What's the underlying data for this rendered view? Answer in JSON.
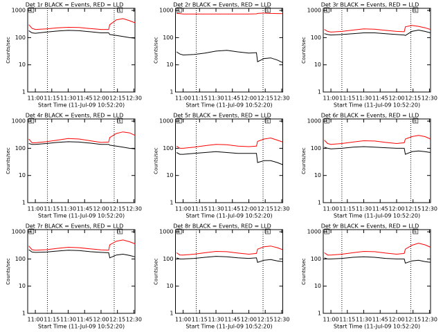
{
  "chart_data": [
    {
      "type": "line",
      "title": "Det 1r BLACK = Events, RED = LLD",
      "ylabel": "Counts/sec",
      "xlabel": "Start Time (11-Jul-09 10:52:20)",
      "x": [
        "10:54",
        "10:57",
        "11:00",
        "11:10",
        "11:20",
        "11:30",
        "11:40",
        "11:50",
        "12:00",
        "12:07",
        "12:08",
        "12:14",
        "12:20",
        "12:26",
        "12:31"
      ],
      "series": [
        {
          "name": "Events",
          "color": "#000000",
          "values": [
            180,
            150,
            145,
            160,
            175,
            185,
            180,
            165,
            150,
            150,
            130,
            120,
            110,
            100,
            95
          ]
        },
        {
          "name": "LLD",
          "color": "#ff0000",
          "values": [
            300,
            220,
            200,
            210,
            230,
            240,
            235,
            215,
            200,
            200,
            300,
            450,
            500,
            420,
            350
          ]
        }
      ],
      "xlim": [
        "10:53",
        "12:31"
      ],
      "xticks": [
        "11:00",
        "11:15",
        "11:30",
        "11:45",
        "12:00",
        "12:15",
        "12:30"
      ],
      "ylim": [
        1,
        1200
      ],
      "yticks": [
        1,
        10,
        100,
        1000
      ],
      "log_y": true,
      "vlines": [
        "11:11",
        "12:12"
      ],
      "annotations": [
        {
          "x": "10:56",
          "text": "E"
        },
        {
          "x": "12:17",
          "text": "E"
        }
      ]
    },
    {
      "type": "line",
      "title": "Det 2r BLACK = Events, RED = LLD",
      "ylabel": "Counts/sec",
      "xlabel": "Start Time (11-Jul-09 10:52:20)",
      "x": [
        "10:54",
        "10:57",
        "11:00",
        "11:10",
        "11:20",
        "11:30",
        "11:40",
        "11:50",
        "12:00",
        "12:07",
        "12:08",
        "12:14",
        "12:20",
        "12:26",
        "12:31"
      ],
      "series": [
        {
          "name": "Events",
          "color": "#000000",
          "values": [
            30,
            25,
            23,
            24,
            27,
            32,
            34,
            30,
            27,
            28,
            13,
            17,
            18,
            15,
            12
          ]
        },
        {
          "name": "LLD",
          "color": "#ff0000",
          "values": [
            780,
            760,
            740,
            740,
            740,
            740,
            740,
            740,
            740,
            750,
            780,
            800,
            780,
            770,
            760
          ]
        }
      ],
      "xlim": [
        "10:53",
        "12:31"
      ],
      "xticks": [
        "11:00",
        "11:15",
        "11:30",
        "11:45",
        "12:00",
        "12:15",
        "12:30"
      ],
      "ylim": [
        1,
        1200
      ],
      "yticks": [
        1,
        10,
        100,
        1000
      ],
      "log_y": true,
      "vlines": [
        "11:12",
        "12:13"
      ],
      "annotations": [
        {
          "x": "10:56",
          "text": "E"
        },
        {
          "x": "12:17",
          "text": "E"
        }
      ]
    },
    {
      "type": "line",
      "title": "Det 3r BLACK = Events, RED = LLD",
      "ylabel": "Counts/sec",
      "xlabel": "Start Time (11-Jul-09 10:52:20)",
      "x": [
        "10:54",
        "10:57",
        "11:00",
        "11:10",
        "11:20",
        "11:30",
        "11:40",
        "11:50",
        "12:00",
        "12:07",
        "12:08",
        "12:14",
        "12:20",
        "12:26",
        "12:31"
      ],
      "series": [
        {
          "name": "Events",
          "color": "#000000",
          "values": [
            140,
            130,
            125,
            130,
            140,
            150,
            150,
            140,
            130,
            125,
            120,
            170,
            190,
            170,
            150
          ]
        },
        {
          "name": "LLD",
          "color": "#ff0000",
          "values": [
            200,
            170,
            160,
            170,
            190,
            210,
            205,
            185,
            170,
            165,
            250,
            280,
            260,
            230,
            200
          ]
        }
      ],
      "xlim": [
        "10:53",
        "12:31"
      ],
      "xticks": [
        "11:00",
        "11:15",
        "11:30",
        "11:45",
        "12:00",
        "12:15",
        "12:30"
      ],
      "ylim": [
        1,
        1200
      ],
      "yticks": [
        1,
        10,
        100,
        1000
      ],
      "log_y": true,
      "vlines": [
        "11:10",
        "12:13"
      ],
      "annotations": [
        {
          "x": "10:56",
          "text": "E"
        },
        {
          "x": "12:17",
          "text": "E"
        }
      ]
    },
    {
      "type": "line",
      "title": "Det 4r BLACK = Events, RED = LLD",
      "ylabel": "Counts/sec",
      "xlabel": "Start Time (11-Jul-09 10:52:20)",
      "x": [
        "10:54",
        "10:57",
        "11:00",
        "11:10",
        "11:20",
        "11:30",
        "11:40",
        "11:50",
        "12:00",
        "12:07",
        "12:08",
        "12:14",
        "12:20",
        "12:26",
        "12:31"
      ],
      "series": [
        {
          "name": "Events",
          "color": "#000000",
          "values": [
            150,
            140,
            140,
            150,
            165,
            175,
            170,
            155,
            140,
            140,
            130,
            120,
            110,
            100,
            95
          ]
        },
        {
          "name": "LLD",
          "color": "#ff0000",
          "values": [
            220,
            160,
            160,
            175,
            200,
            230,
            220,
            190,
            165,
            170,
            250,
            350,
            400,
            370,
            300
          ]
        }
      ],
      "xlim": [
        "10:53",
        "12:31"
      ],
      "xticks": [
        "11:00",
        "11:15",
        "11:30",
        "11:45",
        "12:00",
        "12:15",
        "12:30"
      ],
      "ylim": [
        1,
        1200
      ],
      "yticks": [
        1,
        10,
        100,
        1000
      ],
      "log_y": true,
      "vlines": [
        "11:11",
        "12:12"
      ],
      "annotations": [
        {
          "x": "10:56",
          "text": "E"
        },
        {
          "x": "12:17",
          "text": "E"
        }
      ]
    },
    {
      "type": "line",
      "title": "Det 5r BLACK = Events, RED = LLD",
      "ylabel": "Counts/sec",
      "xlabel": "Start Time (11-Jul-09 10:52:20)",
      "x": [
        "10:54",
        "10:57",
        "11:00",
        "11:10",
        "11:20",
        "11:30",
        "11:40",
        "11:50",
        "12:00",
        "12:07",
        "12:08",
        "12:14",
        "12:20",
        "12:26",
        "12:31"
      ],
      "series": [
        {
          "name": "Events",
          "color": "#000000",
          "values": [
            70,
            60,
            60,
            65,
            70,
            75,
            70,
            65,
            65,
            65,
            30,
            35,
            35,
            30,
            25
          ]
        },
        {
          "name": "LLD",
          "color": "#ff0000",
          "values": [
            120,
            100,
            100,
            110,
            125,
            140,
            135,
            120,
            115,
            120,
            180,
            220,
            240,
            200,
            170
          ]
        }
      ],
      "xlim": [
        "10:53",
        "12:31"
      ],
      "xticks": [
        "11:00",
        "11:15",
        "11:30",
        "11:45",
        "12:00",
        "12:15",
        "12:30"
      ],
      "ylim": [
        1,
        1200
      ],
      "yticks": [
        1,
        10,
        100,
        1000
      ],
      "log_y": true,
      "vlines": [
        "11:12",
        "12:13"
      ],
      "annotations": [
        {
          "x": "10:56",
          "text": "E"
        },
        {
          "x": "12:17",
          "text": "E"
        }
      ]
    },
    {
      "type": "line",
      "title": "Det 6r BLACK = Events, RED = LLD",
      "ylabel": "Counts/sec",
      "xlabel": "Start Time (11-Jul-09 10:52:20)",
      "x": [
        "10:54",
        "10:57",
        "11:00",
        "11:10",
        "11:20",
        "11:30",
        "11:40",
        "11:50",
        "12:00",
        "12:07",
        "12:08",
        "12:14",
        "12:20",
        "12:26",
        "12:31"
      ],
      "series": [
        {
          "name": "Events",
          "color": "#000000",
          "values": [
            110,
            100,
            95,
            100,
            110,
            115,
            110,
            105,
            100,
            100,
            60,
            75,
            80,
            75,
            70
          ]
        },
        {
          "name": "LLD",
          "color": "#ff0000",
          "values": [
            200,
            150,
            140,
            150,
            170,
            190,
            185,
            165,
            150,
            160,
            220,
            270,
            300,
            270,
            220
          ]
        }
      ],
      "xlim": [
        "10:53",
        "12:31"
      ],
      "xticks": [
        "11:00",
        "11:15",
        "11:30",
        "11:45",
        "12:00",
        "12:15",
        "12:30"
      ],
      "ylim": [
        1,
        1200
      ],
      "yticks": [
        1,
        10,
        100,
        1000
      ],
      "log_y": true,
      "vlines": [
        "11:10",
        "12:13"
      ],
      "annotations": [
        {
          "x": "10:56",
          "text": "E"
        },
        {
          "x": "12:17",
          "text": "E"
        }
      ]
    },
    {
      "type": "line",
      "title": "Det 7r BLACK = Events, RED = LLD",
      "ylabel": "Counts/sec",
      "xlabel": "Start Time (11-Jul-09 10:52:20)",
      "x": [
        "10:54",
        "10:57",
        "11:00",
        "11:10",
        "11:20",
        "11:30",
        "11:40",
        "11:50",
        "12:00",
        "12:07",
        "12:08",
        "12:14",
        "12:20",
        "12:26",
        "12:31"
      ],
      "series": [
        {
          "name": "Events",
          "color": "#000000",
          "values": [
            220,
            180,
            175,
            180,
            195,
            210,
            205,
            185,
            175,
            170,
            110,
            140,
            150,
            135,
            120
          ]
        },
        {
          "name": "LLD",
          "color": "#ff0000",
          "values": [
            300,
            220,
            210,
            220,
            245,
            270,
            260,
            235,
            215,
            210,
            330,
            450,
            500,
            430,
            360
          ]
        }
      ],
      "xlim": [
        "10:53",
        "12:31"
      ],
      "xticks": [
        "11:00",
        "11:15",
        "11:30",
        "11:45",
        "12:00",
        "12:15",
        "12:30"
      ],
      "ylim": [
        1,
        1200
      ],
      "yticks": [
        1,
        10,
        100,
        1000
      ],
      "log_y": true,
      "vlines": [
        "11:11",
        "12:12"
      ],
      "annotations": [
        {
          "x": "10:56",
          "text": "E"
        },
        {
          "x": "12:17",
          "text": "E"
        }
      ]
    },
    {
      "type": "line",
      "title": "Det 8r BLACK = Events, RED = LLD",
      "ylabel": "Counts/sec",
      "xlabel": "Start Time (11-Jul-09 10:52:20)",
      "x": [
        "10:54",
        "10:57",
        "11:00",
        "11:10",
        "11:20",
        "11:30",
        "11:40",
        "11:50",
        "12:00",
        "12:07",
        "12:08",
        "12:14",
        "12:20",
        "12:26",
        "12:31"
      ],
      "series": [
        {
          "name": "Events",
          "color": "#000000",
          "values": [
            110,
            100,
            100,
            105,
            115,
            125,
            120,
            110,
            105,
            110,
            75,
            90,
            95,
            85,
            80
          ]
        },
        {
          "name": "LLD",
          "color": "#ff0000",
          "values": [
            170,
            140,
            140,
            150,
            170,
            190,
            185,
            165,
            150,
            160,
            230,
            280,
            300,
            260,
            220
          ]
        }
      ],
      "xlim": [
        "10:53",
        "12:31"
      ],
      "xticks": [
        "11:00",
        "11:15",
        "11:30",
        "11:45",
        "12:00",
        "12:15",
        "12:30"
      ],
      "ylim": [
        1,
        1200
      ],
      "yticks": [
        1,
        10,
        100,
        1000
      ],
      "log_y": true,
      "vlines": [
        "11:12",
        "12:13"
      ],
      "annotations": [
        {
          "x": "10:56",
          "text": "E"
        },
        {
          "x": "12:17",
          "text": "E"
        }
      ]
    },
    {
      "type": "line",
      "title": "Det 9r BLACK = Events, RED = LLD",
      "ylabel": "Counts/sec",
      "xlabel": "Start Time (11-Jul-09 10:52:20)",
      "x": [
        "10:54",
        "10:57",
        "11:00",
        "11:10",
        "11:20",
        "11:30",
        "11:40",
        "11:50",
        "12:00",
        "12:07",
        "12:08",
        "12:14",
        "12:20",
        "12:26",
        "12:31"
      ],
      "series": [
        {
          "name": "Events",
          "color": "#000000",
          "values": [
            110,
            100,
            100,
            105,
            115,
            120,
            115,
            105,
            100,
            100,
            70,
            85,
            90,
            80,
            75
          ]
        },
        {
          "name": "LLD",
          "color": "#ff0000",
          "values": [
            170,
            140,
            140,
            150,
            170,
            190,
            185,
            165,
            150,
            160,
            230,
            320,
            380,
            330,
            270
          ]
        }
      ],
      "xlim": [
        "10:53",
        "12:31"
      ],
      "xticks": [
        "11:00",
        "11:15",
        "11:30",
        "11:45",
        "12:00",
        "12:15",
        "12:30"
      ],
      "ylim": [
        1,
        1200
      ],
      "yticks": [
        1,
        10,
        100,
        1000
      ],
      "log_y": true,
      "vlines": [
        "11:10",
        "12:13"
      ],
      "annotations": [
        {
          "x": "10:56",
          "text": "E"
        },
        {
          "x": "12:17",
          "text": "E"
        }
      ]
    }
  ]
}
